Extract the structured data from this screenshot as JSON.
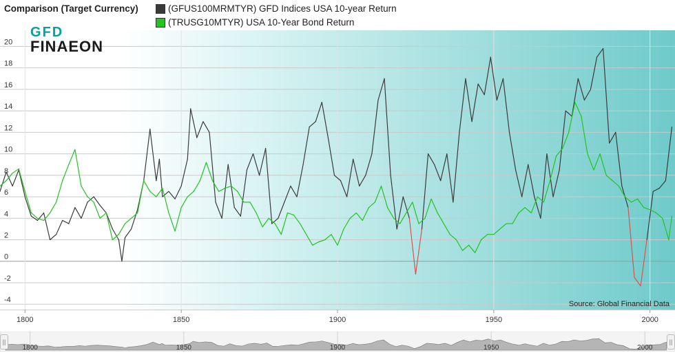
{
  "header": {
    "title": "Comparison (Target Currency)",
    "legend": [
      {
        "label": "(GFUS100MRMTYR) GFD Indices USA 10-year Return",
        "color": "#3a3a3a"
      },
      {
        "label": "(TRUSG10MTYR) USA 10-Year Bond Return",
        "color": "#22c41e"
      }
    ]
  },
  "logo": {
    "line1": "GFD",
    "line2": "FINAEON"
  },
  "source": "Source: Global Financial Data",
  "colors": {
    "gfd": "#3a3a3a",
    "bond": "#22c41e",
    "negative": "#d9534f"
  },
  "chart_data": {
    "type": "line",
    "xlim": [
      1792,
      2008
    ],
    "ylim": [
      -4.5,
      21.5
    ],
    "yticks": [
      -4,
      -2,
      0,
      2,
      4,
      6,
      8,
      10,
      12,
      14,
      16,
      18,
      20
    ],
    "xticks": [
      1800,
      1850,
      1900,
      1950,
      2000
    ],
    "grid": true,
    "legend_position": "top-left",
    "series": [
      {
        "name": "(GFUS100MRMTYR) GFD Indices USA 10-year Return",
        "x": [
          1792,
          1794,
          1796,
          1798,
          1800,
          1802,
          1804,
          1806,
          1808,
          1810,
          1812,
          1814,
          1816,
          1818,
          1820,
          1822,
          1824,
          1826,
          1828,
          1830,
          1831,
          1832,
          1834,
          1836,
          1838,
          1840,
          1842,
          1843,
          1844,
          1846,
          1848,
          1850,
          1852,
          1853,
          1855,
          1857,
          1859,
          1861,
          1863,
          1865,
          1867,
          1869,
          1871,
          1873,
          1875,
          1877,
          1879,
          1881,
          1883,
          1885,
          1887,
          1889,
          1891,
          1893,
          1895,
          1897,
          1899,
          1901,
          1903,
          1905,
          1907,
          1909,
          1911,
          1913,
          1915,
          1917,
          1919,
          1921,
          1923,
          1925,
          1927,
          1929,
          1931,
          1933,
          1935,
          1937,
          1939,
          1941,
          1943,
          1945,
          1947,
          1949,
          1951,
          1953,
          1955,
          1957,
          1959,
          1961,
          1963,
          1965,
          1967,
          1969,
          1971,
          1973,
          1975,
          1977,
          1979,
          1981,
          1983,
          1985,
          1987,
          1989,
          1991,
          1993,
          1995,
          1997,
          1999,
          2001,
          2003,
          2005,
          2007
        ],
        "y": [
          6.5,
          8.3,
          7.0,
          8.5,
          6.0,
          4.2,
          3.8,
          4.5,
          2.0,
          2.5,
          3.8,
          3.5,
          5.0,
          4.0,
          5.5,
          6.0,
          5.2,
          4.5,
          3.0,
          2.0,
          0.0,
          2.2,
          3.0,
          4.8,
          7.5,
          12.3,
          7.5,
          9.5,
          6.0,
          6.5,
          5.8,
          7.0,
          9.5,
          14.2,
          11.5,
          13.0,
          12.0,
          5.5,
          4.0,
          9.0,
          5.0,
          4.2,
          8.5,
          10.0,
          8.0,
          10.5,
          3.5,
          4.0,
          5.5,
          7.0,
          6.0,
          9.0,
          12.5,
          13.0,
          14.8,
          11.5,
          8.0,
          7.5,
          6.0,
          9.5,
          7.0,
          8.0,
          10.0,
          15.0,
          17.0,
          8.0,
          3.0,
          6.0,
          4.0,
          -1.2,
          3.0,
          10.0,
          9.0,
          7.5,
          10.0,
          5.5,
          12.0,
          17.0,
          13.0,
          16.5,
          15.5,
          19.0,
          15.0,
          17.0,
          12.0,
          8.5,
          6.0,
          9.0,
          6.0,
          4.0,
          10.0,
          6.0,
          8.5,
          14.0,
          13.5,
          17.0,
          15.0,
          16.0,
          19.0,
          19.8,
          11.0,
          12.0,
          7.0,
          5.0,
          -1.5,
          -2.3,
          2.0,
          6.5,
          6.8,
          7.5,
          12.5
        ]
      },
      {
        "name": "(TRUSG10MTYR) USA 10-Year Bond Return",
        "x": [
          1792,
          1794,
          1796,
          1798,
          1800,
          1802,
          1804,
          1806,
          1808,
          1810,
          1812,
          1814,
          1816,
          1818,
          1820,
          1822,
          1824,
          1826,
          1828,
          1830,
          1832,
          1834,
          1836,
          1838,
          1840,
          1842,
          1844,
          1846,
          1848,
          1850,
          1852,
          1854,
          1856,
          1858,
          1860,
          1862,
          1864,
          1866,
          1868,
          1870,
          1872,
          1874,
          1876,
          1878,
          1880,
          1882,
          1884,
          1886,
          1888,
          1890,
          1892,
          1894,
          1896,
          1898,
          1900,
          1902,
          1904,
          1906,
          1908,
          1910,
          1912,
          1914,
          1916,
          1918,
          1920,
          1922,
          1924,
          1926,
          1928,
          1930,
          1932,
          1934,
          1936,
          1938,
          1940,
          1942,
          1944,
          1946,
          1948,
          1950,
          1952,
          1954,
          1956,
          1958,
          1960,
          1962,
          1964,
          1966,
          1968,
          1970,
          1972,
          1974,
          1976,
          1978,
          1980,
          1982,
          1984,
          1986,
          1988,
          1990,
          1992,
          1994,
          1996,
          1998,
          2000,
          2002,
          2004,
          2006,
          2007
        ],
        "y": [
          7.0,
          7.5,
          8.2,
          8.6,
          6.5,
          4.5,
          4.0,
          3.8,
          4.5,
          5.5,
          7.5,
          9.0,
          10.4,
          7.0,
          6.0,
          5.5,
          4.0,
          4.5,
          2.0,
          2.5,
          3.5,
          4.0,
          4.5,
          7.5,
          6.5,
          6.0,
          6.8,
          4.5,
          2.8,
          5.0,
          6.0,
          6.5,
          7.5,
          9.2,
          7.5,
          6.5,
          6.8,
          7.0,
          6.5,
          5.5,
          5.5,
          4.5,
          3.2,
          4.0,
          3.5,
          2.5,
          4.5,
          4.3,
          3.5,
          2.5,
          1.5,
          1.8,
          2.0,
          2.5,
          1.5,
          3.0,
          4.0,
          4.5,
          3.8,
          5.0,
          5.5,
          7.0,
          5.0,
          4.0,
          3.5,
          4.5,
          5.5,
          3.5,
          4.0,
          5.8,
          4.5,
          3.5,
          2.5,
          2.0,
          1.0,
          1.5,
          0.8,
          2.0,
          2.5,
          2.5,
          3.0,
          3.5,
          3.5,
          4.5,
          5.0,
          4.5,
          6.0,
          5.5,
          7.5,
          9.8,
          10.5,
          12.0,
          14.8,
          13.5,
          10.0,
          8.5,
          10.0,
          8.0,
          7.5,
          7.0,
          6.0,
          5.5,
          5.8,
          5.0,
          4.8,
          4.5,
          4.0,
          2.0,
          4.2
        ]
      }
    ]
  }
}
